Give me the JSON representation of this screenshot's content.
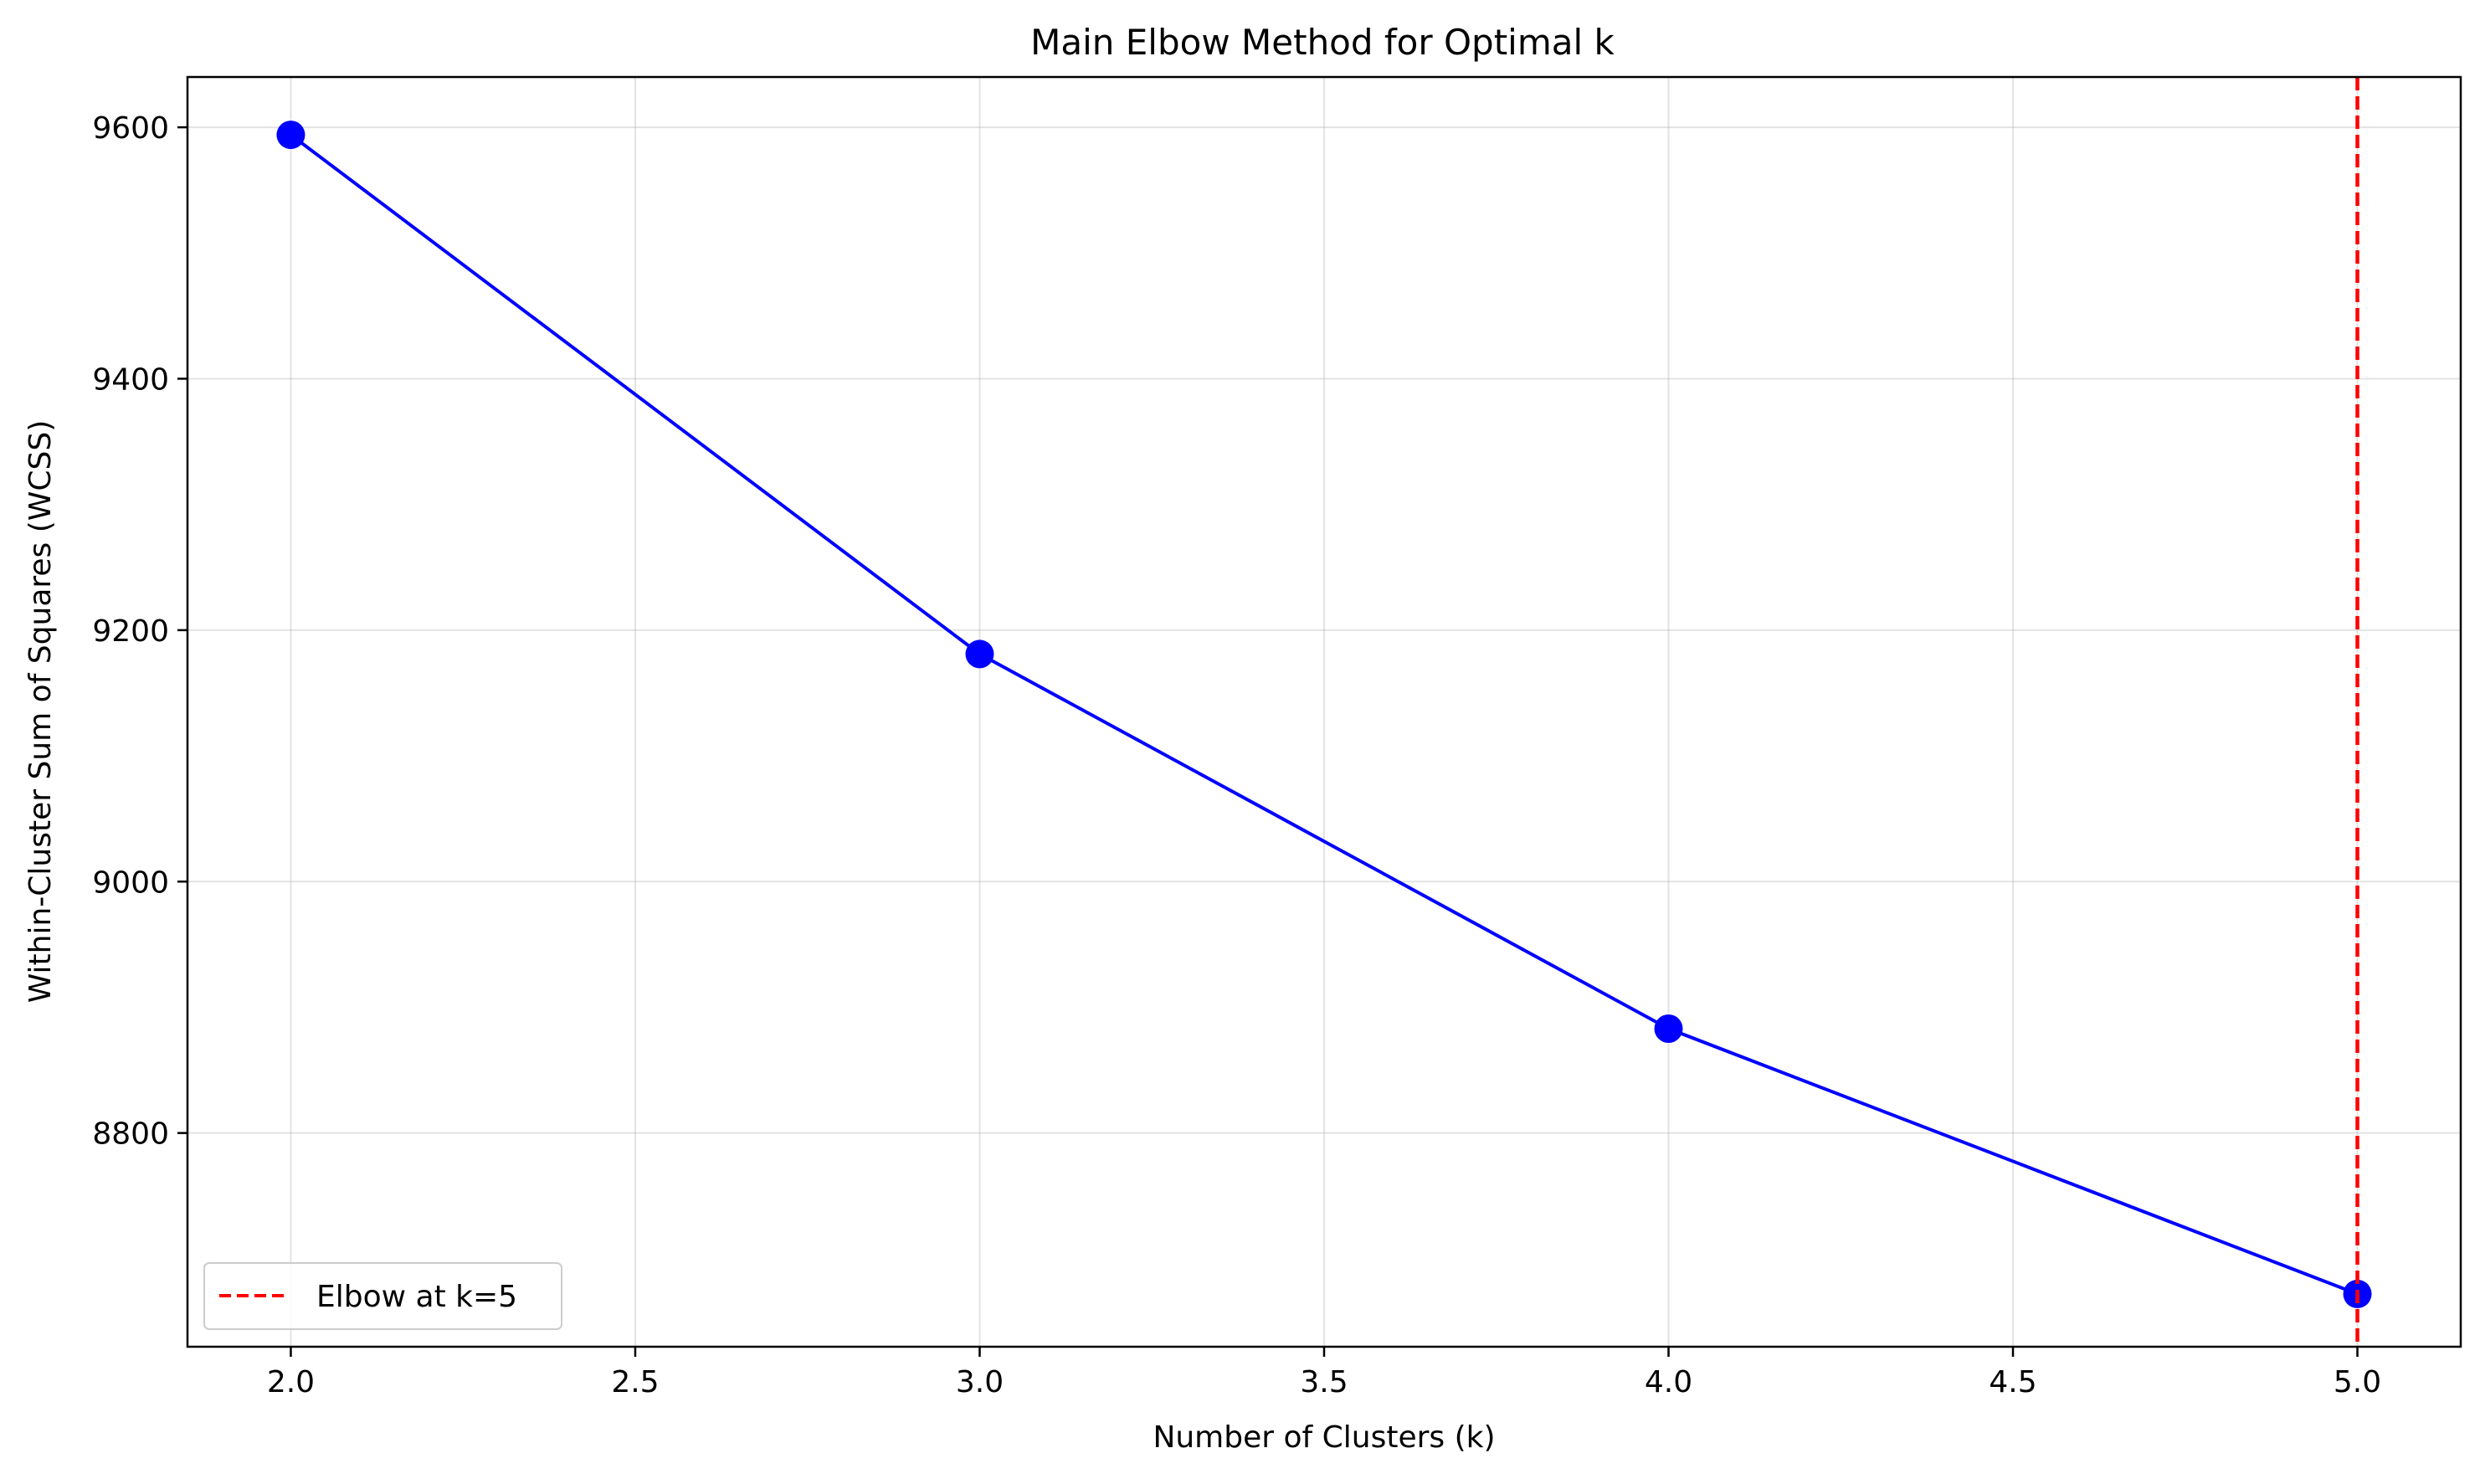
{
  "chart_data": {
    "type": "line",
    "title": "Main Elbow Method for Optimal k",
    "xlabel": "Number of Clusters (k)",
    "ylabel": "Within-Cluster Sum of Squares (WCSS)",
    "xlim": [
      1.85,
      5.15
    ],
    "ylim": [
      8630,
      9640
    ],
    "x_ticks": [
      2.0,
      2.5,
      3.0,
      3.5,
      4.0,
      4.5,
      5.0
    ],
    "x_tick_labels": [
      "2.0",
      "2.5",
      "3.0",
      "3.5",
      "4.0",
      "4.5",
      "5.0"
    ],
    "y_ticks": [
      8800,
      9000,
      9200,
      9400,
      9600
    ],
    "y_tick_labels": [
      "8800",
      "9000",
      "9200",
      "9400",
      "9600"
    ],
    "grid": true,
    "legend_position": "lower-left",
    "series": [
      {
        "x": [
          2,
          3,
          4,
          5
        ],
        "y": [
          9594,
          9181,
          8883,
          8672
        ],
        "color": "#0000ff",
        "marker": "circle"
      }
    ],
    "reference_lines": [
      {
        "orientation": "vertical",
        "x": 5,
        "name": "Elbow at k=5",
        "color": "#ff0000",
        "style": "dashed"
      }
    ]
  }
}
